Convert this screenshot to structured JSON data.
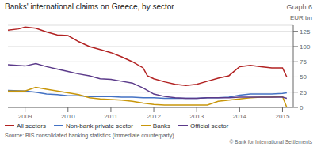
{
  "chart_data": {
    "type": "line",
    "title": "Banks' international claims on Greece, by sector",
    "y_label": "EUR bn",
    "annotations": [
      "Graph 6",
      "Source: BIS consolidated banking statistics (immediate counterparty).",
      "© Bank for International Settlements"
    ],
    "xlim": [
      2008.6,
      2015.25
    ],
    "xticks": [
      2009,
      2010,
      2011,
      2012,
      2013,
      2014,
      2015
    ],
    "ylim": [
      0,
      135
    ],
    "yticks": [
      0,
      25,
      50,
      75,
      100,
      125
    ],
    "grid": true,
    "legend": "bottom",
    "series": [
      {
        "name": "All sectors",
        "color": "#b22222",
        "x": [
          2008.6,
          2008.85,
          2009.0,
          2009.25,
          2009.5,
          2009.75,
          2010.0,
          2010.25,
          2010.5,
          2010.75,
          2011.0,
          2011.25,
          2011.5,
          2011.75,
          2011.85,
          2012.0,
          2012.25,
          2012.5,
          2012.75,
          2013.0,
          2013.25,
          2013.5,
          2013.75,
          2014.0,
          2014.25,
          2014.5,
          2014.75,
          2015.0,
          2015.1
        ],
        "values": [
          127,
          129,
          132,
          130,
          124,
          119,
          118,
          108,
          100,
          95,
          90,
          83,
          75,
          65,
          52,
          47,
          42,
          38,
          36,
          38,
          43,
          48,
          52,
          67,
          69,
          67,
          65,
          65,
          50
        ]
      },
      {
        "name": "Non-bank private sector",
        "color": "#4472c4",
        "x": [
          2008.6,
          2009.0,
          2009.25,
          2009.5,
          2009.75,
          2010.0,
          2010.25,
          2010.5,
          2010.75,
          2011.0,
          2011.25,
          2011.5,
          2011.75,
          2012.0,
          2012.25,
          2012.5,
          2012.75,
          2013.0,
          2013.25,
          2013.5,
          2013.75,
          2014.0,
          2014.25,
          2014.5,
          2014.75,
          2015.0,
          2015.1
        ],
        "values": [
          28,
          27,
          25,
          22,
          21,
          19,
          19,
          18,
          18,
          18,
          17,
          17,
          16,
          16,
          15,
          15,
          15,
          15,
          16,
          16,
          17,
          20,
          22,
          22,
          22,
          23,
          24
        ]
      },
      {
        "name": "Banks",
        "color": "#c8960a",
        "x": [
          2008.6,
          2009.0,
          2009.25,
          2009.5,
          2009.75,
          2010.0,
          2010.25,
          2010.5,
          2010.75,
          2011.0,
          2011.25,
          2011.5,
          2011.75,
          2012.0,
          2012.25,
          2012.5,
          2012.75,
          2013.0,
          2013.25,
          2013.5,
          2013.75,
          2014.0,
          2014.25,
          2014.5,
          2014.75,
          2015.0,
          2015.1
        ],
        "values": [
          27,
          27,
          33,
          30,
          27,
          24,
          21,
          16,
          14,
          13,
          12,
          10,
          7,
          5,
          4,
          4,
          4,
          4,
          4,
          10,
          12,
          14,
          16,
          17,
          17,
          18,
          0
        ]
      },
      {
        "name": "Official sector",
        "color": "#5b3a8a",
        "x": [
          2008.6,
          2009.0,
          2009.25,
          2009.5,
          2009.75,
          2010.0,
          2010.25,
          2010.5,
          2010.75,
          2011.0,
          2011.25,
          2011.5,
          2011.75,
          2012.0,
          2012.25,
          2012.5,
          2012.75,
          2013.0,
          2013.25,
          2013.5,
          2013.75,
          2014.0,
          2014.25,
          2014.5,
          2014.75,
          2015.0,
          2015.1
        ],
        "values": [
          70,
          68,
          72,
          67,
          63,
          59,
          55,
          52,
          47,
          46,
          43,
          40,
          32,
          22,
          18,
          16,
          15,
          15,
          16,
          16,
          16,
          17,
          17,
          17,
          17,
          17,
          15
        ]
      }
    ]
  }
}
